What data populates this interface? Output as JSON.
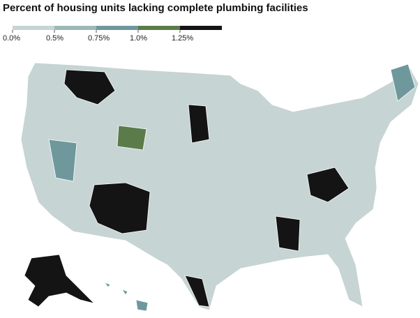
{
  "title": "Percent of housing units lacking complete plumbing facilities",
  "legend": {
    "items": [
      {
        "label": "0.0%",
        "color": "#c6d4d3"
      },
      {
        "label": "0.5%",
        "color": "#9db8b9"
      },
      {
        "label": "0.75%",
        "color": "#6e989c"
      },
      {
        "label": "1.0%",
        "color": "#5b7b4b"
      },
      {
        "label": "1.25%",
        "color": "#141414"
      }
    ]
  }
}
